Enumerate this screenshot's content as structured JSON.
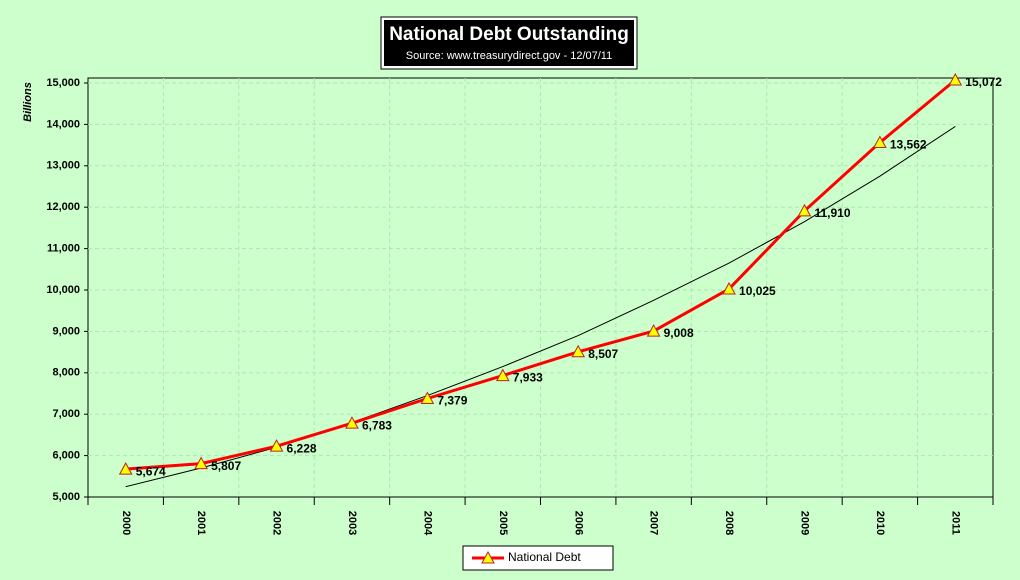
{
  "chart_data": {
    "type": "line",
    "title": "National Debt Outstanding",
    "subtitle": "Source: www.treasurydirect.gov - 12/07/11",
    "y_label": "Billions",
    "categories": [
      "2000",
      "2001",
      "2002",
      "2003",
      "2004",
      "2005",
      "2006",
      "2007",
      "2008",
      "2009",
      "2010",
      "2011"
    ],
    "series": [
      {
        "name": "National Debt",
        "color": "#ff0000",
        "marker_color": "#ffff00",
        "values": [
          5674,
          5807,
          6228,
          6783,
          7379,
          7933,
          8507,
          9008,
          10025,
          11910,
          13562,
          15072
        ],
        "value_labels": [
          "5,674",
          "5,807",
          "6,228",
          "6,783",
          "7,379",
          "7,933",
          "8,507",
          "9,008",
          "10,025",
          "11,910",
          "13,562",
          "15,072"
        ]
      }
    ],
    "trendline": {
      "color": "#000000",
      "values": [
        5250,
        5700,
        6200,
        6800,
        7450,
        8150,
        8900,
        9750,
        10650,
        11650,
        12750,
        13950
      ]
    },
    "ylim": [
      5000,
      15000
    ],
    "yticks": [
      {
        "value": 5000,
        "label": "5,000"
      },
      {
        "value": 6000,
        "label": "6,000"
      },
      {
        "value": 7000,
        "label": "7,000"
      },
      {
        "value": 8000,
        "label": "8,000"
      },
      {
        "value": 9000,
        "label": "9,000"
      },
      {
        "value": 10000,
        "label": "10,000"
      },
      {
        "value": 11000,
        "label": "11,000"
      },
      {
        "value": 12000,
        "label": "12,000"
      },
      {
        "value": 13000,
        "label": "13,000"
      },
      {
        "value": 14000,
        "label": "14,000"
      },
      {
        "value": 15000,
        "label": "15,000"
      }
    ],
    "grid": true,
    "legend": "bottom"
  }
}
